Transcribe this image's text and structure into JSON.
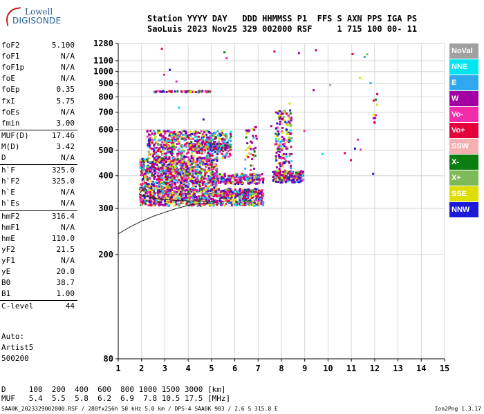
{
  "logo": {
    "line1": "Lowell",
    "line2": "DIGISONDE"
  },
  "header": {
    "line1": "Station YYYY DAY   DDD HHMMSS P1  FFS S AXN PPS IGA PS",
    "line2": "SaoLuis 2023 Nov25 329 002000 RSF     1 715 100 00- 11"
  },
  "params_groups": [
    [
      {
        "label": "foF2",
        "value": "5.100"
      },
      {
        "label": "foF1",
        "value": "N/A"
      },
      {
        "label": "foF1p",
        "value": "N/A"
      },
      {
        "label": "foE",
        "value": "N/A"
      },
      {
        "label": "foEp",
        "value": "0.35"
      },
      {
        "label": "fxI",
        "value": "5.75"
      },
      {
        "label": "foEs",
        "value": "N/A"
      },
      {
        "label": "fmin",
        "value": "3.00"
      }
    ],
    [
      {
        "label": "MUF(D)",
        "value": "17.46"
      },
      {
        "label": "M(D)",
        "value": "3.42"
      },
      {
        "label": "D",
        "value": "N/A"
      }
    ],
    [
      {
        "label": "h`F",
        "value": "325.0"
      },
      {
        "label": "h`F2",
        "value": "325.0"
      },
      {
        "label": "h`E",
        "value": "N/A"
      },
      {
        "label": "h`Es",
        "value": "N/A"
      }
    ],
    [
      {
        "label": "hmF2",
        "value": "316.4"
      },
      {
        "label": "hmF1",
        "value": "N/A"
      },
      {
        "label": "hmE",
        "value": "110.0"
      },
      {
        "label": "yF2",
        "value": "21.5"
      },
      {
        "label": "yF1",
        "value": "N/A"
      },
      {
        "label": "yE",
        "value": "20.0"
      },
      {
        "label": "B0",
        "value": "38.7"
      },
      {
        "label": "B1",
        "value": "1.00"
      }
    ],
    [
      {
        "label": "C-level",
        "value": "44"
      }
    ]
  ],
  "auto": [
    "Auto:",
    "Artist5",
    "500200"
  ],
  "footer": {
    "d_row": "D     100  200  400  600  800 1000 1500 3000 [km]",
    "muf_row": "MUF   5.4  5.5  5.8  6.2  6.9  7.8 10.5 17.5 [MHz]",
    "info": "SAA0K_2023329002000.RSF / 280fx256h 50 kHz 5.0 km / DPS-4 SAA0K 903 / 2.6 S 315.8 E",
    "version": "Ion2Png 1.3.17"
  },
  "legend": [
    {
      "label": "NoVal",
      "color": "#a0a0a0",
      "text": "#ffffff"
    },
    {
      "label": "NNE",
      "color": "#00e5f0",
      "text": "#ffffff"
    },
    {
      "label": "E",
      "color": "#2fa8ef",
      "text": "#ffffff"
    },
    {
      "label": "W",
      "color": "#a200a2",
      "text": "#ffffff"
    },
    {
      "label": "Vo-",
      "color": "#f02ca8",
      "text": "#ffffff"
    },
    {
      "label": "Vo+",
      "color": "#e6003a",
      "text": "#ffffff"
    },
    {
      "label": "SSW",
      "color": "#f4b0b0",
      "text": "#ffffff"
    },
    {
      "label": "X-",
      "color": "#0a7d10",
      "text": "#ffffff"
    },
    {
      "label": "X+",
      "color": "#7fba58",
      "text": "#ffffff"
    },
    {
      "label": "SSE",
      "color": "#dede00",
      "text": "#ffffff"
    },
    {
      "label": "NNW",
      "color": "#1a1ad8",
      "text": "#ffffff"
    }
  ],
  "chart_data": {
    "type": "scatter",
    "title": "",
    "xlabel": "",
    "ylabel": "",
    "xlim": [
      1,
      15
    ],
    "ylim": [
      80,
      1280
    ],
    "y_scale": "log",
    "grid": true,
    "x_ticks": [
      1,
      2,
      3,
      4,
      5,
      6,
      7,
      8,
      9,
      10,
      11,
      12,
      13,
      14,
      15
    ],
    "y_ticks": [
      80,
      200,
      300,
      400,
      500,
      600,
      700,
      800,
      900,
      1000,
      1100,
      1280
    ],
    "legend_position": "right",
    "clusters": [
      {
        "name": "F-trace low",
        "x_range": [
          1.9,
          7.2
        ],
        "y_range": [
          310,
          360
        ],
        "count": 900
      },
      {
        "name": "F-trace mid",
        "x_range": [
          1.9,
          5.2
        ],
        "y_range": [
          360,
          470
        ],
        "count": 900
      },
      {
        "name": "F-trace upper",
        "x_range": [
          2.2,
          5.8
        ],
        "y_range": [
          470,
          600
        ],
        "count": 550
      },
      {
        "name": "band 520",
        "x_range": [
          4.0,
          5.8
        ],
        "y_range": [
          505,
          535
        ],
        "count": 200
      },
      {
        "name": "band 400",
        "x_range": [
          5.0,
          7.2
        ],
        "y_range": [
          375,
          410
        ],
        "count": 220
      },
      {
        "name": "8 MHz low",
        "x_range": [
          7.6,
          8.9
        ],
        "y_range": [
          380,
          420
        ],
        "count": 200
      },
      {
        "name": "8 MHz column",
        "x_range": [
          7.7,
          8.4
        ],
        "y_range": [
          420,
          720
        ],
        "count": 170
      },
      {
        "name": "845 band",
        "x_range": [
          2.5,
          4.9
        ],
        "y_range": [
          840,
          852
        ],
        "count": 55
      },
      {
        "name": "6.7 column",
        "x_range": [
          6.4,
          6.9
        ],
        "y_range": [
          420,
          620
        ],
        "count": 40
      },
      {
        "name": "12 MHz column",
        "x_range": [
          11.9,
          12.1
        ],
        "y_range": [
          640,
          880
        ],
        "count": 10
      },
      {
        "name": "scattered",
        "x_range": [
          1.3,
          12.0
        ],
        "y_range": [
          330,
          1250
        ],
        "count": 30
      }
    ],
    "fit_curves": [
      {
        "name": "profile",
        "points": [
          [
            1,
            240
          ],
          [
            1.5,
            255
          ],
          [
            2.0,
            268
          ],
          [
            2.5,
            280
          ],
          [
            3.0,
            290
          ],
          [
            3.5,
            300
          ],
          [
            4.0,
            308
          ],
          [
            4.5,
            313
          ],
          [
            5.0,
            315
          ]
        ]
      },
      {
        "name": "trace",
        "points": [
          [
            1.9,
            340
          ],
          [
            2.2,
            333
          ],
          [
            2.8,
            325
          ],
          [
            3.5,
            322
          ],
          [
            4.0,
            321
          ],
          [
            4.5,
            320
          ],
          [
            5.0,
            319
          ],
          [
            5.2,
            318
          ]
        ]
      },
      {
        "name": "cusp",
        "points": [
          [
            1.9,
            340
          ],
          [
            2.0,
            350
          ],
          [
            2.2,
            355
          ],
          [
            1.95,
            362
          ]
        ]
      }
    ]
  }
}
